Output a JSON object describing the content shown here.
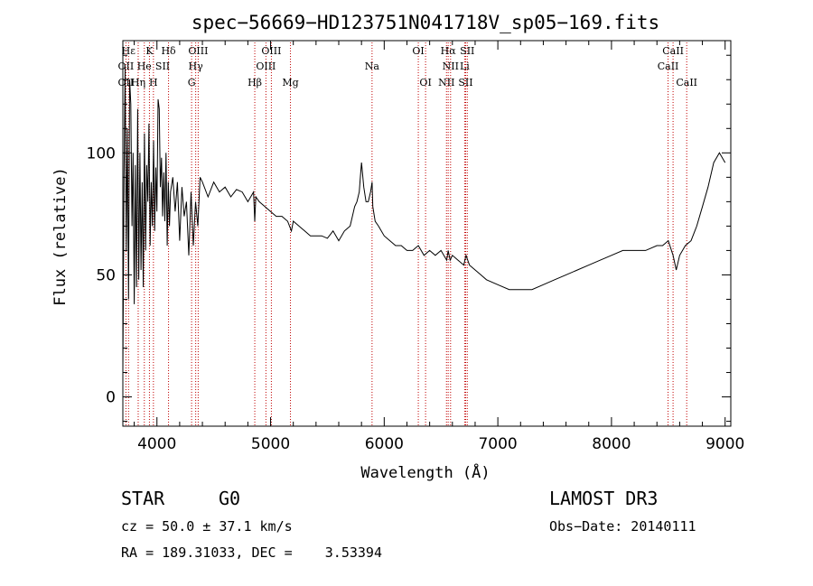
{
  "chart_data": {
    "type": "line",
    "title": "spec−56669−HD123751N041718V_sp05−169.fits",
    "xlabel": "Wavelength (Å)",
    "ylabel": "Flux (relative)",
    "xlim": [
      3700,
      9050
    ],
    "ylim": [
      -12,
      146
    ],
    "xticks": [
      4000,
      5000,
      6000,
      7000,
      8000,
      9000
    ],
    "yticks": [
      0,
      50,
      100
    ],
    "grid": false,
    "series": [
      {
        "name": "spectrum",
        "x": [
          3700,
          3710,
          3720,
          3730,
          3740,
          3750,
          3760,
          3770,
          3780,
          3790,
          3800,
          3810,
          3820,
          3830,
          3840,
          3850,
          3860,
          3870,
          3880,
          3890,
          3900,
          3910,
          3920,
          3930,
          3940,
          3950,
          3960,
          3970,
          3980,
          3990,
          4000,
          4010,
          4020,
          4030,
          4040,
          4050,
          4060,
          4070,
          4080,
          4090,
          4100,
          4110,
          4120,
          4140,
          4160,
          4180,
          4200,
          4220,
          4240,
          4260,
          4280,
          4300,
          4320,
          4340,
          4360,
          4380,
          4400,
          4450,
          4500,
          4550,
          4600,
          4650,
          4700,
          4750,
          4800,
          4850,
          4861,
          4870,
          4900,
          4950,
          5000,
          5050,
          5100,
          5150,
          5183,
          5200,
          5250,
          5300,
          5350,
          5400,
          5450,
          5500,
          5550,
          5600,
          5650,
          5700,
          5720,
          5740,
          5760,
          5780,
          5790,
          5800,
          5820,
          5840,
          5860,
          5880,
          5893,
          5900,
          5920,
          5950,
          6000,
          6050,
          6100,
          6150,
          6200,
          6250,
          6300,
          6350,
          6400,
          6450,
          6500,
          6550,
          6563,
          6580,
          6600,
          6650,
          6700,
          6720,
          6750,
          6800,
          6850,
          6900,
          7000,
          7100,
          7200,
          7300,
          7400,
          7500,
          7600,
          7700,
          7800,
          7900,
          8000,
          8100,
          8200,
          8300,
          8400,
          8450,
          8500,
          8542,
          8570,
          8600,
          8650,
          8700,
          8750,
          8800,
          8850,
          8900,
          8950,
          9000
        ],
        "values": [
          10,
          90,
          135,
          60,
          110,
          40,
          130,
          120,
          70,
          100,
          38,
          95,
          45,
          118,
          48,
          100,
          52,
          88,
          45,
          108,
          60,
          95,
          80,
          112,
          62,
          88,
          70,
          105,
          68,
          94,
          76,
          122,
          118,
          86,
          98,
          74,
          92,
          72,
          100,
          62,
          88,
          70,
          84,
          90,
          76,
          88,
          64,
          86,
          74,
          80,
          58,
          84,
          62,
          80,
          70,
          90,
          88,
          82,
          88,
          84,
          86,
          82,
          85,
          84,
          80,
          84,
          72,
          82,
          80,
          78,
          76,
          74,
          74,
          72,
          68,
          72,
          70,
          68,
          66,
          66,
          66,
          65,
          68,
          64,
          68,
          70,
          74,
          78,
          80,
          84,
          90,
          96,
          86,
          80,
          80,
          84,
          88,
          78,
          72,
          70,
          66,
          64,
          62,
          62,
          60,
          60,
          62,
          58,
          60,
          58,
          60,
          56,
          60,
          56,
          58,
          56,
          54,
          58,
          54,
          52,
          50,
          48,
          46,
          44,
          44,
          44,
          46,
          48,
          50,
          52,
          54,
          56,
          58,
          60,
          60,
          60,
          62,
          62,
          64,
          58,
          52,
          58,
          62,
          64,
          70,
          78,
          86,
          96,
          100,
          96
        ]
      }
    ],
    "lines": [
      {
        "name": "CaII K",
        "x": 3934
      },
      {
        "name": "CaII H",
        "x": 3969
      },
      {
        "name": "Hδ",
        "x": 4102
      },
      {
        "name": "G band",
        "x": 4305
      },
      {
        "name": "Hγ",
        "x": 4341
      },
      {
        "name": "OIII 4363",
        "x": 4363
      },
      {
        "name": "Hβ",
        "x": 4861
      },
      {
        "name": "OIII 4959",
        "x": 4959
      },
      {
        "name": "OIII 5007",
        "x": 5007
      },
      {
        "name": "Mg",
        "x": 5175
      },
      {
        "name": "Na",
        "x": 5893
      },
      {
        "name": "OI 6300",
        "x": 6300
      },
      {
        "name": "OI 6364",
        "x": 6364
      },
      {
        "name": "NII 6548",
        "x": 6548
      },
      {
        "name": "Hα",
        "x": 6563
      },
      {
        "name": "NII 6584",
        "x": 6584
      },
      {
        "name": "Li",
        "x": 6708
      },
      {
        "name": "SII 6717",
        "x": 6717
      },
      {
        "name": "SII 6731",
        "x": 6731
      },
      {
        "name": "CaII 8498",
        "x": 8498
      },
      {
        "name": "CaII 8542",
        "x": 8542
      },
      {
        "name": "CaII 8662",
        "x": 8662
      },
      {
        "name": "Hε",
        "x": 3750
      },
      {
        "name": "OII",
        "x": 3727
      },
      {
        "name": "Hη",
        "x": 3835
      },
      {
        "name": "HeI",
        "x": 3889
      }
    ],
    "line_labels": [
      {
        "text": "Hε",
        "x": 3750,
        "row": 0
      },
      {
        "text": "K",
        "x": 3934,
        "row": 0
      },
      {
        "text": "Hδ",
        "x": 4102,
        "row": 0
      },
      {
        "text": "OIII",
        "x": 4363,
        "row": 0
      },
      {
        "text": "OIII",
        "x": 5007,
        "row": 0
      },
      {
        "text": "OI",
        "x": 6300,
        "row": 0
      },
      {
        "text": "Hα",
        "x": 6563,
        "row": 0
      },
      {
        "text": "SII",
        "x": 6731,
        "row": 0
      },
      {
        "text": "CaII",
        "x": 8542,
        "row": 0
      },
      {
        "text": "OII",
        "x": 3727,
        "row": 1
      },
      {
        "text": "He",
        "x": 3889,
        "row": 1
      },
      {
        "text": "SII",
        "x": 4050,
        "row": 1
      },
      {
        "text": "Hγ",
        "x": 4341,
        "row": 1
      },
      {
        "text": "OIII",
        "x": 4959,
        "row": 1
      },
      {
        "text": "Na",
        "x": 5893,
        "row": 1
      },
      {
        "text": "NII",
        "x": 6584,
        "row": 1
      },
      {
        "text": "Li",
        "x": 6708,
        "row": 1
      },
      {
        "text": "CaII",
        "x": 8498,
        "row": 1
      },
      {
        "text": "OII",
        "x": 3727,
        "row": 2
      },
      {
        "text": "Hη",
        "x": 3835,
        "row": 2
      },
      {
        "text": "H",
        "x": 3969,
        "row": 2
      },
      {
        "text": "G",
        "x": 4305,
        "row": 2
      },
      {
        "text": "Hβ",
        "x": 4861,
        "row": 2
      },
      {
        "text": "Mg",
        "x": 5175,
        "row": 2
      },
      {
        "text": "OI",
        "x": 6364,
        "row": 2
      },
      {
        "text": "NII",
        "x": 6548,
        "row": 2
      },
      {
        "text": "SII",
        "x": 6717,
        "row": 2
      },
      {
        "text": "CaII",
        "x": 8662,
        "row": 2
      }
    ],
    "colors": {
      "spectrum": "#000000",
      "lines": "#c00000",
      "axes": "#000000"
    }
  },
  "info": {
    "object_type": "STAR",
    "subclass": "G0",
    "cz": "cz = 50.0 ± 37.1 km/s",
    "coords": "RA = 189.31033, DEC =    3.53394",
    "survey": "LAMOST DR3",
    "obs_date": "Obs−Date: 20140111"
  }
}
